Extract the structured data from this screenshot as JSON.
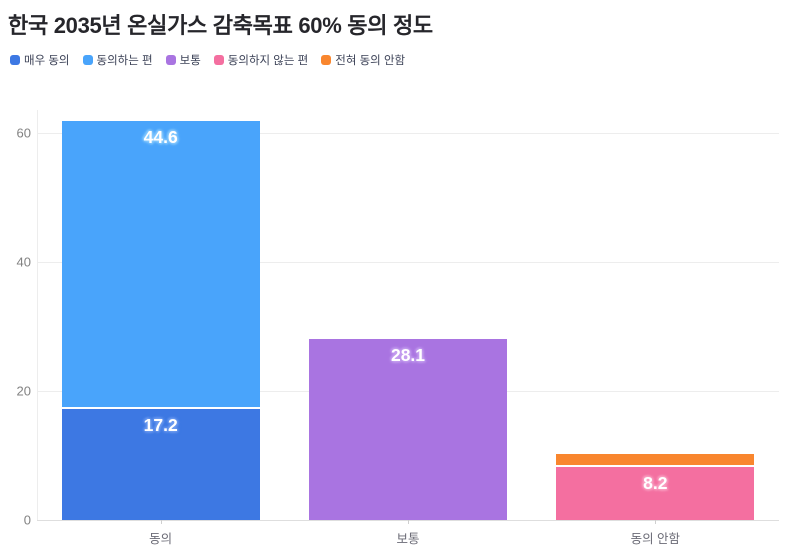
{
  "title": "한국 2035년 온실가스 감축목표 60% 동의 정도",
  "chart_data": {
    "type": "bar",
    "stacked": true,
    "title": "한국 2035년 온실가스 감축목표 60% 동의 정도",
    "categories": [
      "동의",
      "보통",
      "동의 안함"
    ],
    "series": [
      {
        "name": "매우 동의",
        "color": "#3d78e3",
        "halo": "#6e9cef",
        "values": [
          17.2,
          0,
          0
        ],
        "labels": [
          "17.2",
          "",
          ""
        ]
      },
      {
        "name": "동의하는 편",
        "color": "#49a4fb",
        "halo": "#8accff",
        "values": [
          44.6,
          0,
          0
        ],
        "labels": [
          "44.6",
          "",
          ""
        ]
      },
      {
        "name": "보통",
        "color": "#a974e1",
        "halo": "#c5a0ef",
        "values": [
          0,
          28.1,
          0
        ],
        "labels": [
          "",
          "28.1",
          ""
        ]
      },
      {
        "name": "동의하지 않는 편",
        "color": "#f46fa0",
        "halo": "#f9a3c4",
        "values": [
          0,
          0,
          8.2
        ],
        "labels": [
          "",
          "",
          "8.2"
        ]
      },
      {
        "name": "전혀 동의 안함",
        "color": "#f9862e",
        "halo": "#fbb27a",
        "values": [
          0,
          0,
          2.1
        ],
        "labels": [
          "",
          "",
          ""
        ]
      }
    ],
    "xlabel": "",
    "ylabel": "",
    "y_ticks": [
      0,
      20,
      40,
      60
    ],
    "ylim": [
      0,
      63
    ],
    "grid": true,
    "legend_position": "top",
    "bar_totals": [
      61.8,
      28.1,
      10.3
    ]
  }
}
